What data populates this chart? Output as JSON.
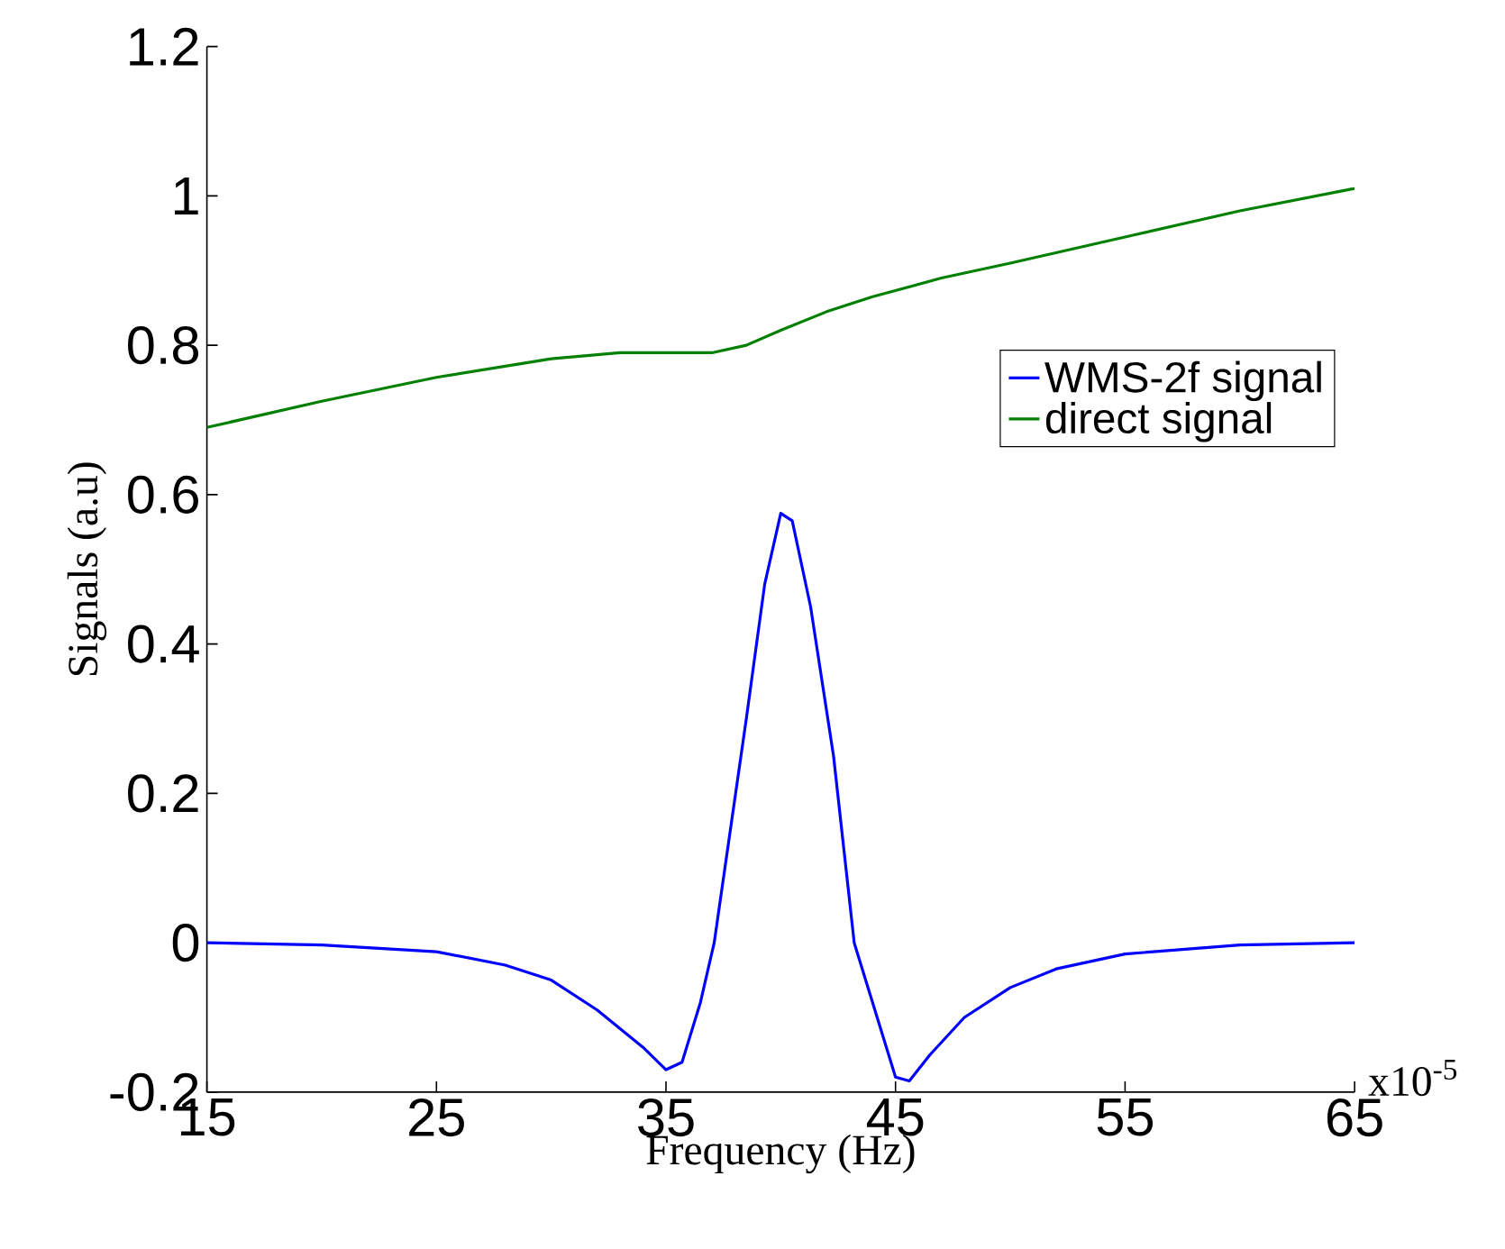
{
  "chart_data": {
    "type": "line",
    "xlabel": "Frequency (Hz)",
    "ylabel": "Signals (a.u)",
    "xlim": [
      15,
      65
    ],
    "xticks": [
      15,
      25,
      35,
      45,
      55,
      65
    ],
    "ylim": [
      -0.2,
      1.2
    ],
    "yticks": [
      -0.2,
      0,
      0.2,
      0.4,
      0.6,
      0.8,
      1,
      1.2
    ],
    "legend": "right",
    "grid": false,
    "annotations": [
      "x10$^{-5}$"
    ],
    "series": [
      {
        "name": "WMS-2f signal",
        "color": "#0000ff",
        "x": [
          15,
          20,
          25,
          28,
          30,
          32,
          34,
          35,
          35.7,
          36.5,
          37.1,
          38.5,
          39.3,
          40,
          40.5,
          41.3,
          42.3,
          43.2,
          44.2,
          45,
          45.6,
          46.5,
          48,
          50,
          52,
          55,
          60,
          65
        ],
        "values": [
          0,
          -0.003,
          -0.012,
          -0.03,
          -0.05,
          -0.09,
          -0.14,
          -0.17,
          -0.16,
          -0.08,
          0,
          0.3,
          0.48,
          0.575,
          0.565,
          0.45,
          0.25,
          0,
          -0.1,
          -0.18,
          -0.185,
          -0.15,
          -0.1,
          -0.06,
          -0.035,
          -0.015,
          -0.003,
          0
        ]
      },
      {
        "name": "direct signal",
        "color": "#008000",
        "x": [
          15,
          20,
          25,
          30,
          33,
          37,
          38.5,
          40,
          42,
          44,
          47,
          50,
          55,
          60,
          65
        ],
        "values": [
          0.69,
          0.725,
          0.757,
          0.782,
          0.79,
          0.79,
          0.8,
          0.82,
          0.845,
          0.865,
          0.89,
          0.91,
          0.945,
          0.98,
          1.01
        ]
      }
    ]
  }
}
